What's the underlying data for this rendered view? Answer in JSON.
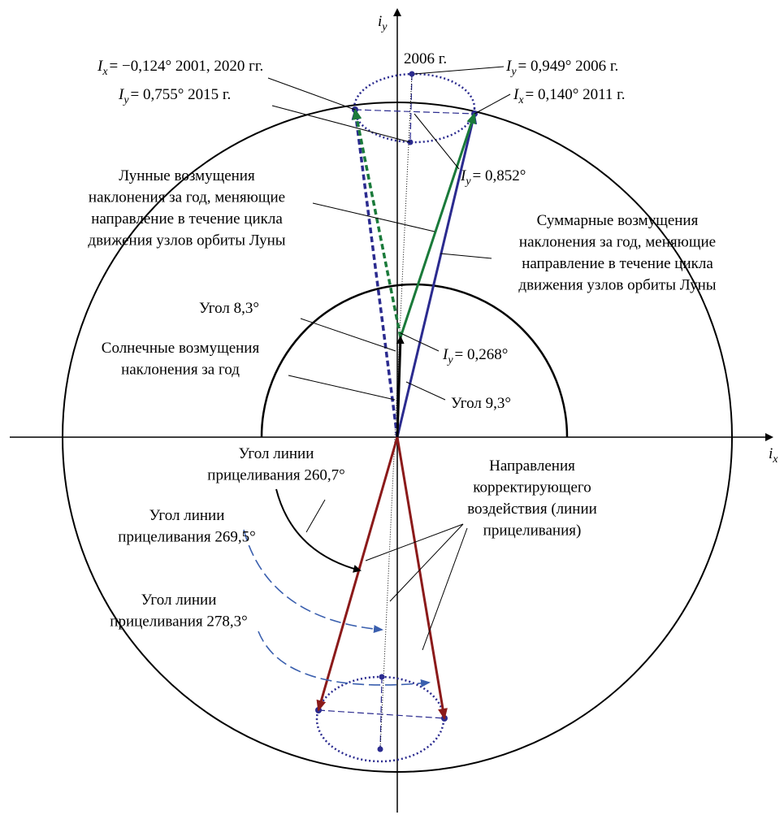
{
  "axes": {
    "y": {
      "main": "i",
      "sub": "y"
    },
    "x": {
      "main": "i",
      "sub": "x"
    }
  },
  "labels": {
    "ix_neg": {
      "var": "I",
      "sub": "x",
      "text": "= −0,124° 2001, 2020 гг."
    },
    "year_2006": "2006 г.",
    "iy_0949": {
      "var": "I",
      "sub": "y",
      "text": "= 0,949° 2006 г."
    },
    "iy_0755": {
      "var": "I",
      "sub": "y",
      "text": "= 0,755° 2015 г."
    },
    "ix_0140": {
      "var": "I",
      "sub": "x",
      "text": "= 0,140° 2011 г."
    },
    "iy_0852": {
      "var": "I",
      "sub": "y",
      "text": "= 0,852°"
    },
    "lunar": [
      "Лунные возмущения",
      "наклонения за год, меняющие",
      "направление в течение цикла",
      "движения узлов орбиты Луны"
    ],
    "summary": [
      "Суммарные возмущения",
      "наклонения за год, меняющие",
      "направление в течение цикла",
      "движения узлов орбиты Луны"
    ],
    "angle_83": "Угол 8,3°",
    "iy_0268": {
      "var": "I",
      "sub": "y",
      "text": "= 0,268°"
    },
    "solar": [
      "Солнечные возмущения",
      "наклонения за год"
    ],
    "angle_93": "Угол 9,3°",
    "aim_2607": [
      "Угол линии",
      "прицеливания 260,7°"
    ],
    "aim_2695": [
      "Угол линии",
      "прицеливания 269,5°"
    ],
    "aim_2783": [
      "Угол линии",
      "прицеливания 278,3°"
    ],
    "directions": [
      "Направления",
      "корректирующего",
      "воздействия (линии",
      "прицеливания)"
    ]
  }
}
